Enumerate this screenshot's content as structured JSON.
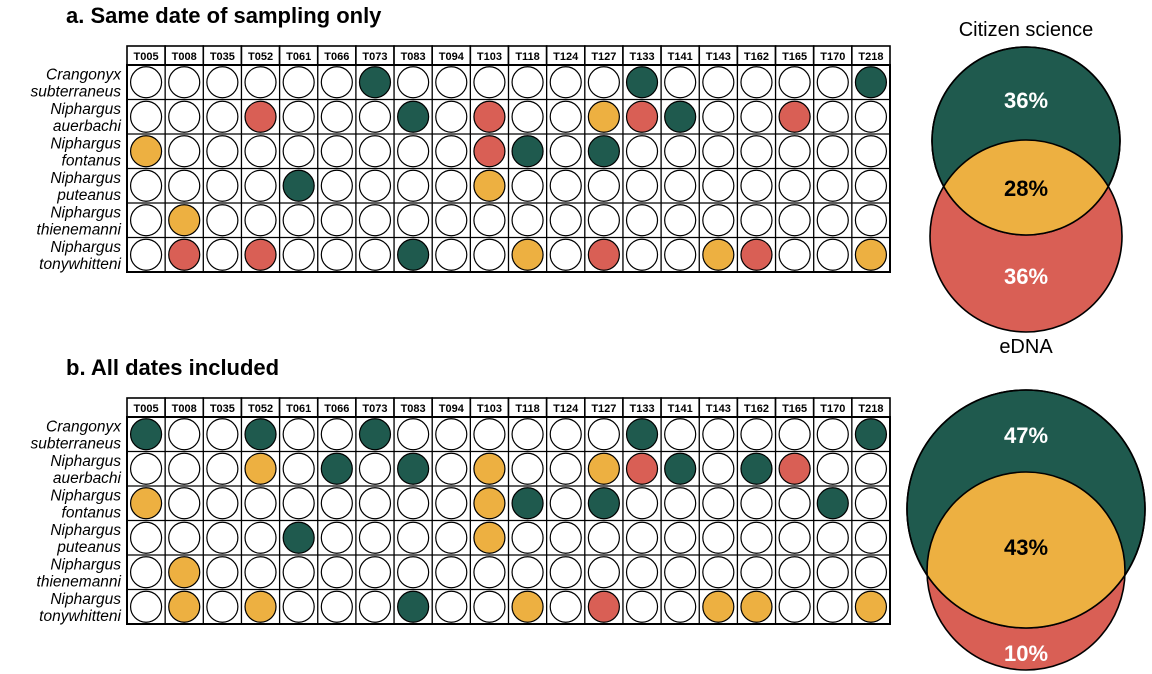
{
  "colors": {
    "citizen_only": "#1f5a4e",
    "both": "#edb041",
    "edna_only": "#d95f55",
    "absent": "#ffffff",
    "outline": "#000000"
  },
  "chart_data": [
    {
      "type": "table",
      "panel": "a",
      "title": "a.  Same date of sampling only",
      "columns": [
        "T005",
        "T008",
        "T035",
        "T052",
        "T061",
        "T066",
        "T073",
        "T083",
        "T094",
        "T103",
        "T118",
        "T124",
        "T127",
        "T133",
        "T141",
        "T143",
        "T162",
        "T165",
        "T170",
        "T218"
      ],
      "rows": [
        {
          "species": [
            "Crangonyx",
            "subterraneus"
          ],
          "cells": [
            0,
            0,
            0,
            0,
            0,
            0,
            1,
            0,
            0,
            0,
            0,
            0,
            0,
            1,
            0,
            0,
            0,
            0,
            0,
            1
          ]
        },
        {
          "species": [
            "Niphargus",
            "auerbachi"
          ],
          "cells": [
            0,
            0,
            0,
            3,
            0,
            0,
            0,
            1,
            0,
            3,
            0,
            0,
            2,
            3,
            1,
            0,
            0,
            3,
            0,
            0
          ]
        },
        {
          "species": [
            "Niphargus",
            "fontanus"
          ],
          "cells": [
            2,
            0,
            0,
            0,
            0,
            0,
            0,
            0,
            0,
            3,
            1,
            0,
            1,
            0,
            0,
            0,
            0,
            0,
            0,
            0
          ]
        },
        {
          "species": [
            "Niphargus",
            "puteanus"
          ],
          "cells": [
            0,
            0,
            0,
            0,
            1,
            0,
            0,
            0,
            0,
            2,
            0,
            0,
            0,
            0,
            0,
            0,
            0,
            0,
            0,
            0
          ]
        },
        {
          "species": [
            "Niphargus",
            "thienemanni"
          ],
          "cells": [
            0,
            2,
            0,
            0,
            0,
            0,
            0,
            0,
            0,
            0,
            0,
            0,
            0,
            0,
            0,
            0,
            0,
            0,
            0,
            0
          ]
        },
        {
          "species": [
            "Niphargus",
            "tonywhitteni"
          ],
          "cells": [
            0,
            3,
            0,
            3,
            0,
            0,
            0,
            1,
            0,
            0,
            2,
            0,
            3,
            0,
            0,
            2,
            3,
            0,
            0,
            2
          ]
        }
      ],
      "cell_codes": {
        "0": "absent",
        "1": "citizen_only",
        "2": "both",
        "3": "edna_only"
      }
    },
    {
      "type": "venn",
      "panel": "a",
      "labels": {
        "top": "Citizen science",
        "bottom": "eDNA"
      },
      "top_only": "36%",
      "overlap": "28%",
      "bottom_only": "36%",
      "fractions": {
        "top_only": 0.36,
        "overlap": 0.28,
        "bottom_only": 0.36
      }
    },
    {
      "type": "table",
      "panel": "b",
      "title": "b.  All dates included",
      "columns": [
        "T005",
        "T008",
        "T035",
        "T052",
        "T061",
        "T066",
        "T073",
        "T083",
        "T094",
        "T103",
        "T118",
        "T124",
        "T127",
        "T133",
        "T141",
        "T143",
        "T162",
        "T165",
        "T170",
        "T218"
      ],
      "rows": [
        {
          "species": [
            "Crangonyx",
            "subterraneus"
          ],
          "cells": [
            1,
            0,
            0,
            1,
            0,
            0,
            1,
            0,
            0,
            0,
            0,
            0,
            0,
            1,
            0,
            0,
            0,
            0,
            0,
            1
          ]
        },
        {
          "species": [
            "Niphargus",
            "auerbachi"
          ],
          "cells": [
            0,
            0,
            0,
            2,
            0,
            1,
            0,
            1,
            0,
            2,
            0,
            0,
            2,
            3,
            1,
            0,
            1,
            3,
            0,
            0
          ]
        },
        {
          "species": [
            "Niphargus",
            "fontanus"
          ],
          "cells": [
            2,
            0,
            0,
            0,
            0,
            0,
            0,
            0,
            0,
            2,
            1,
            0,
            1,
            0,
            0,
            0,
            0,
            0,
            1,
            0
          ]
        },
        {
          "species": [
            "Niphargus",
            "puteanus"
          ],
          "cells": [
            0,
            0,
            0,
            0,
            1,
            0,
            0,
            0,
            0,
            2,
            0,
            0,
            0,
            0,
            0,
            0,
            0,
            0,
            0,
            0
          ]
        },
        {
          "species": [
            "Niphargus",
            "thienemanni"
          ],
          "cells": [
            0,
            2,
            0,
            0,
            0,
            0,
            0,
            0,
            0,
            0,
            0,
            0,
            0,
            0,
            0,
            0,
            0,
            0,
            0,
            0
          ]
        },
        {
          "species": [
            "Niphargus",
            "tonywhitteni"
          ],
          "cells": [
            0,
            2,
            0,
            2,
            0,
            0,
            0,
            1,
            0,
            0,
            2,
            0,
            3,
            0,
            0,
            2,
            2,
            0,
            0,
            2
          ]
        }
      ],
      "cell_codes": {
        "0": "absent",
        "1": "citizen_only",
        "2": "both",
        "3": "edna_only"
      }
    },
    {
      "type": "venn",
      "panel": "b",
      "labels": {
        "top": "",
        "bottom": ""
      },
      "top_only": "47%",
      "overlap": "43%",
      "bottom_only": "10%",
      "fractions": {
        "top_only": 0.47,
        "overlap": 0.43,
        "bottom_only": 0.1
      }
    }
  ]
}
